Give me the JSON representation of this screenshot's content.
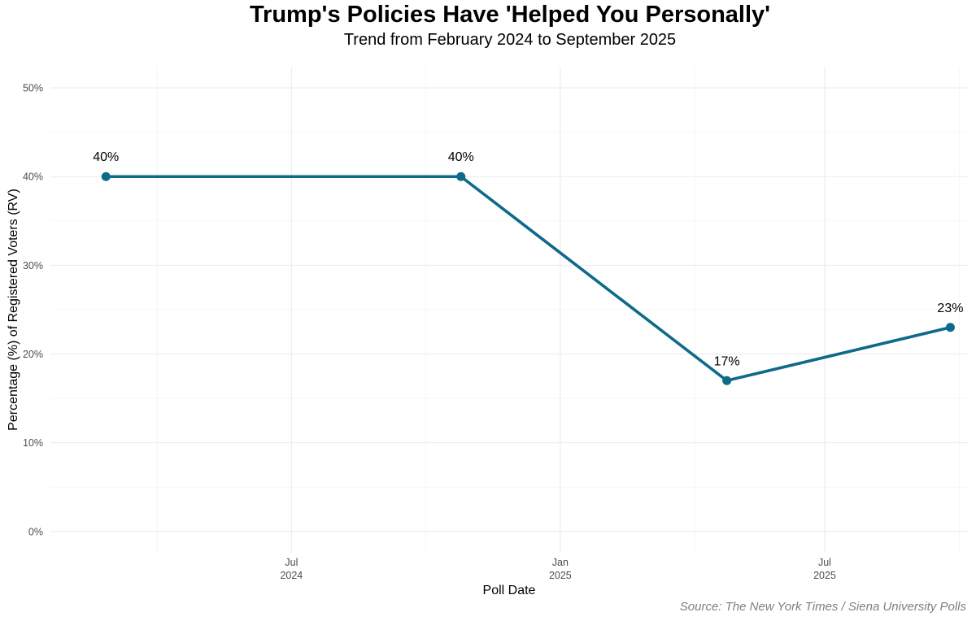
{
  "chart_data": {
    "type": "line",
    "title": "Trump's Policies Have 'Helped You Personally'",
    "subtitle": "Trend from February 2024 to September 2025",
    "xlabel": "Poll Date",
    "ylabel": "Percentage (%) of Registered Voters (RV)",
    "caption": "Source: The New York Times / Siena University Polls",
    "x_ticks": [
      {
        "date": "2024-07-01",
        "line1": "Jul",
        "line2": "2024"
      },
      {
        "date": "2025-01-01",
        "line1": "Jan",
        "line2": "2025"
      },
      {
        "date": "2025-07-01",
        "line1": "Jul",
        "line2": "2025"
      }
    ],
    "y_ticks": [
      {
        "value": 0,
        "label": "0%"
      },
      {
        "value": 10,
        "label": "10%"
      },
      {
        "value": 20,
        "label": "20%"
      },
      {
        "value": 30,
        "label": "30%"
      },
      {
        "value": 40,
        "label": "40%"
      },
      {
        "value": 50,
        "label": "50%"
      }
    ],
    "xlim": [
      "2024-01-18",
      "2025-10-07"
    ],
    "ylim": [
      -2.4,
      52.3
    ],
    "grid": true,
    "series": [
      {
        "name": "Helped you personally",
        "color": "#0e6a8a",
        "points": [
          {
            "date": "2024-02-25",
            "value": 40,
            "label": "40%"
          },
          {
            "date": "2024-10-25",
            "value": 40,
            "label": "40%"
          },
          {
            "date": "2025-04-25",
            "value": 17,
            "label": "17%"
          },
          {
            "date": "2025-09-25",
            "value": 23,
            "label": "23%"
          }
        ]
      }
    ]
  }
}
